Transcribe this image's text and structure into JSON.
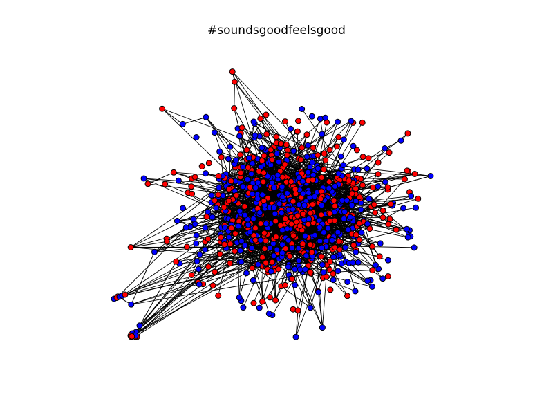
{
  "figure": {
    "title": "#soundsgoodfeelsgood"
  },
  "network": {
    "node_colors": [
      "#ff0000",
      "#0000ff"
    ],
    "node_outline": "#000000",
    "edge_color": "#000000",
    "node_color_share": [
      0.5,
      0.5
    ]
  }
}
